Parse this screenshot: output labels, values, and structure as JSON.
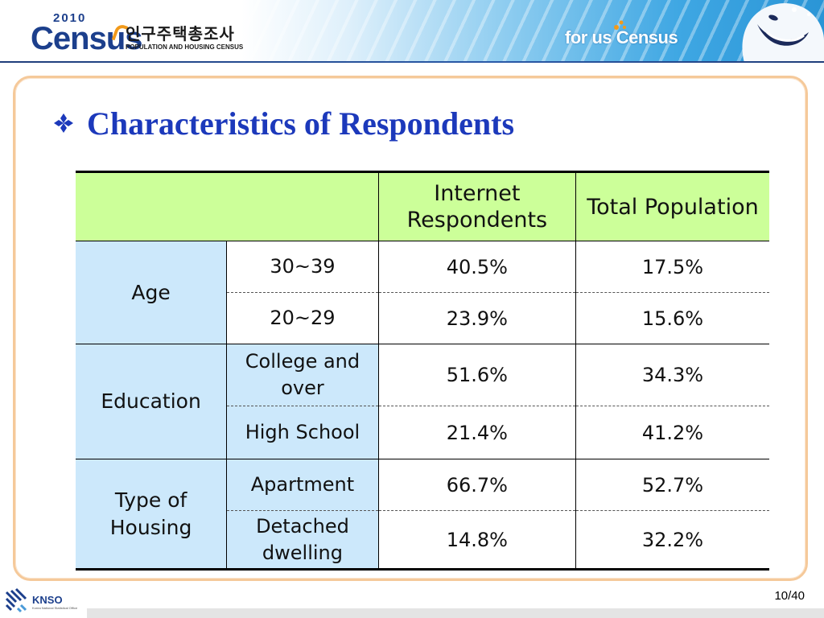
{
  "header": {
    "logo_year": "2010",
    "logo_word": "Census",
    "logo_korean": "인구주택총조사",
    "logo_subtitle": "POPULATION AND HOUSING CENSUS",
    "slogan": "for us Census"
  },
  "slide": {
    "title": "Characteristics of Respondents",
    "bullet_icon": "diamond-bullet-icon"
  },
  "table": {
    "columns": [
      "Internet Respondents",
      "Total Population"
    ],
    "groups": [
      {
        "category": "Age",
        "rows": [
          {
            "label": "30~39",
            "internet": "40.5%",
            "total": "17.5%"
          },
          {
            "label": "20~29",
            "internet": "23.9%",
            "total": "15.6%"
          }
        ]
      },
      {
        "category": "Education",
        "rows": [
          {
            "label": "College and over",
            "internet": "51.6%",
            "total": "34.3%"
          },
          {
            "label": "High School",
            "internet": "21.4%",
            "total": "41.2%"
          }
        ]
      },
      {
        "category": "Type of Housing",
        "rows": [
          {
            "label": "Apartment",
            "internet": "66.7%",
            "total": "52.7%"
          },
          {
            "label": "Detached dwelling",
            "internet": "14.8%",
            "total": "32.2%"
          }
        ]
      }
    ]
  },
  "footer": {
    "org": "KNSO",
    "org_sub": "Korea National Statistical Office",
    "page": "10/40"
  },
  "colors": {
    "title": "#1c39bb",
    "header_row": "#ccff99",
    "category_cells": "#cce8fb",
    "panel_border": "#f5c99a"
  }
}
